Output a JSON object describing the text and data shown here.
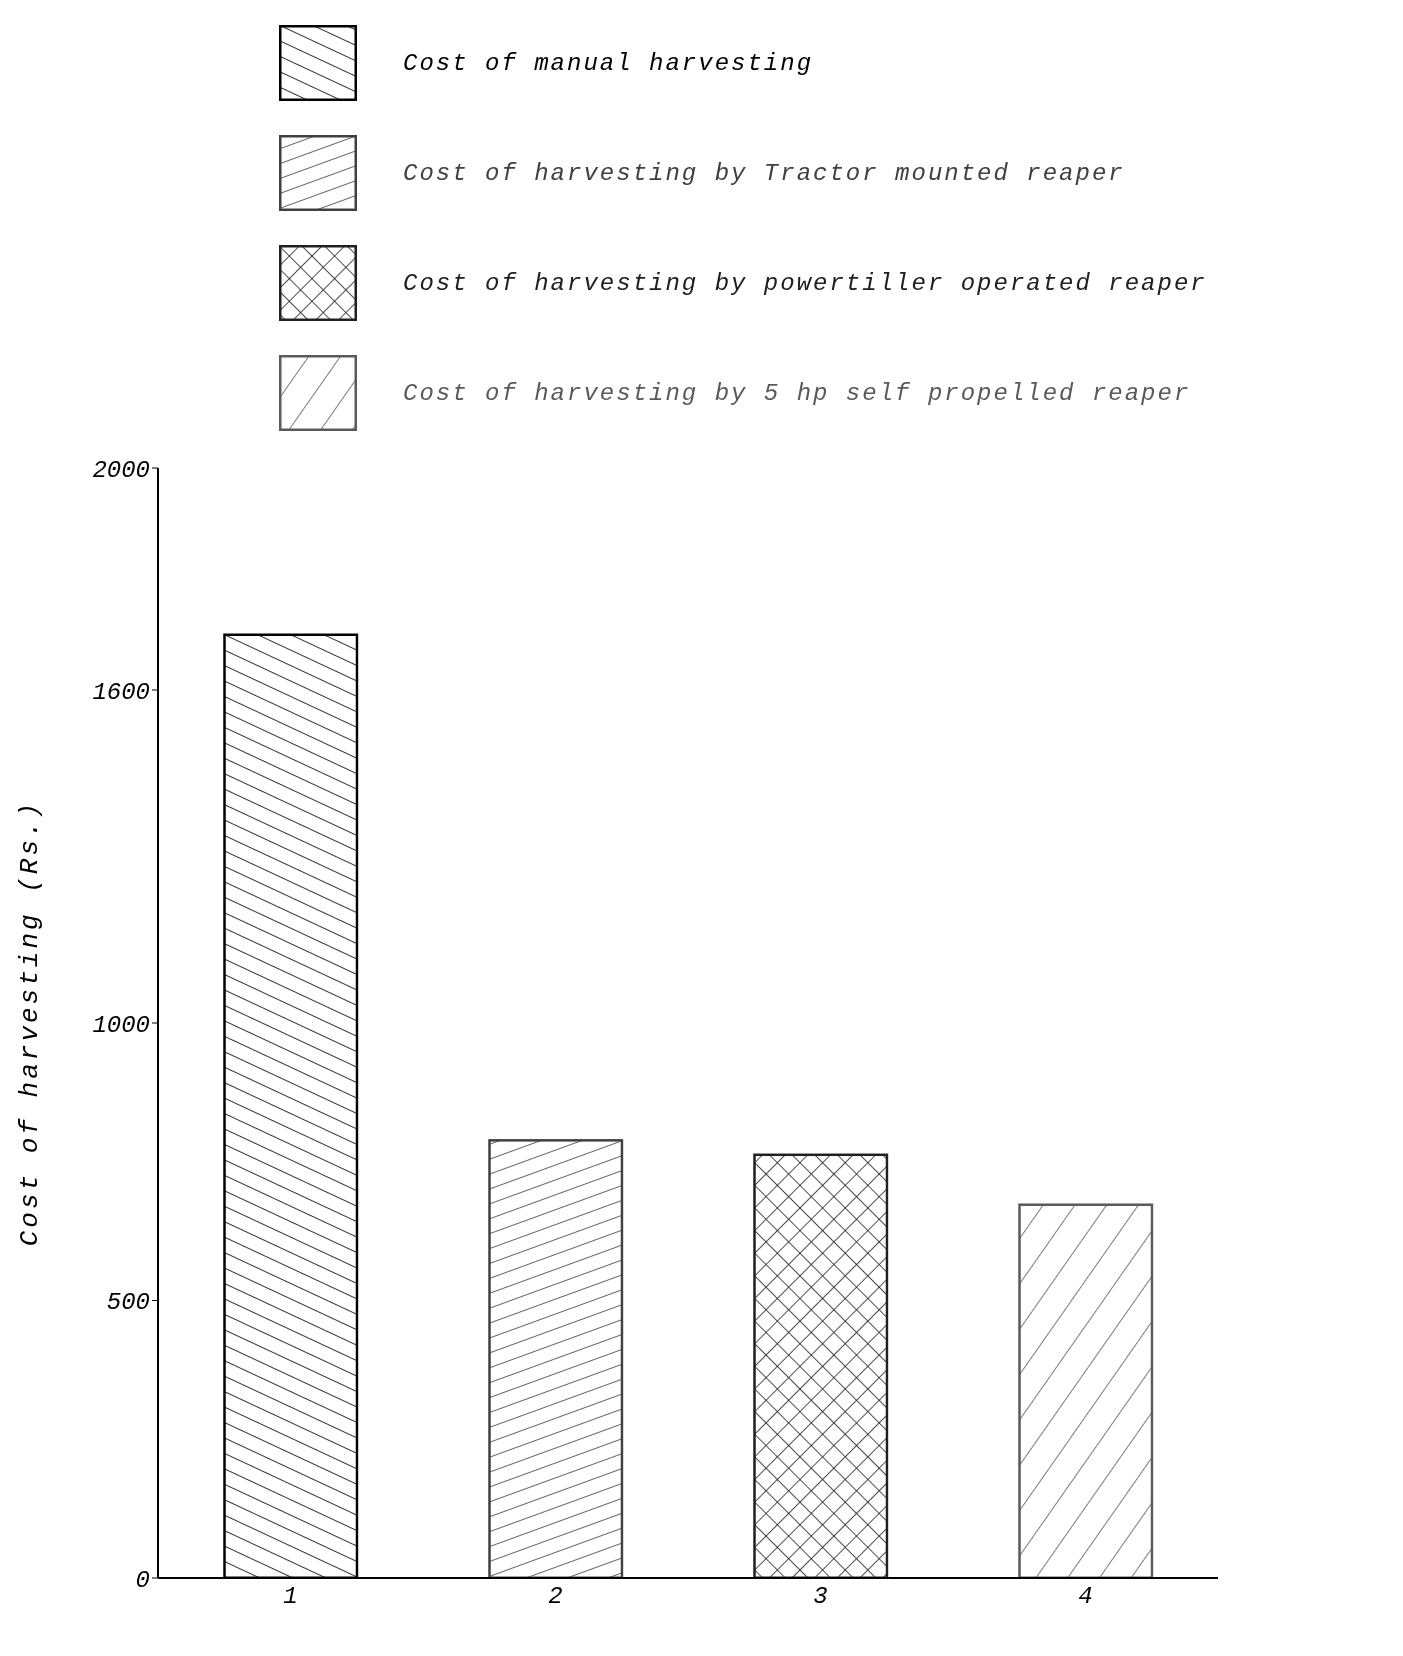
{
  "chart_data": {
    "type": "bar",
    "ylabel": "Cost of harvesting (Rs.)",
    "categories": [
      "1",
      "2",
      "3",
      "4"
    ],
    "stacked": true,
    "legend": "top",
    "grid": false,
    "series": [
      {
        "name": "Cost of manual harvesting",
        "color": "#000000",
        "values": [
          1700,
          null,
          null,
          null
        ]
      },
      {
        "name": "Cost of harvesting by Tractor mounted reaper",
        "color": "#404040",
        "values": [
          null,
          789,
          null,
          null
        ]
      },
      {
        "name": "Cost of harvesting by powertiller operated reaper",
        "color": "#202020",
        "values": [
          null,
          null,
          763,
          null
        ]
      },
      {
        "name": "Cost of harvesting by 5 hp self propelled reaper",
        "color": "#5a5a5a",
        "values": [
          null,
          null,
          null,
          673
        ]
      }
    ],
    "ylim": [
      0,
      2000
    ],
    "yticks": [
      0,
      500,
      1000,
      1600,
      2000
    ]
  }
}
